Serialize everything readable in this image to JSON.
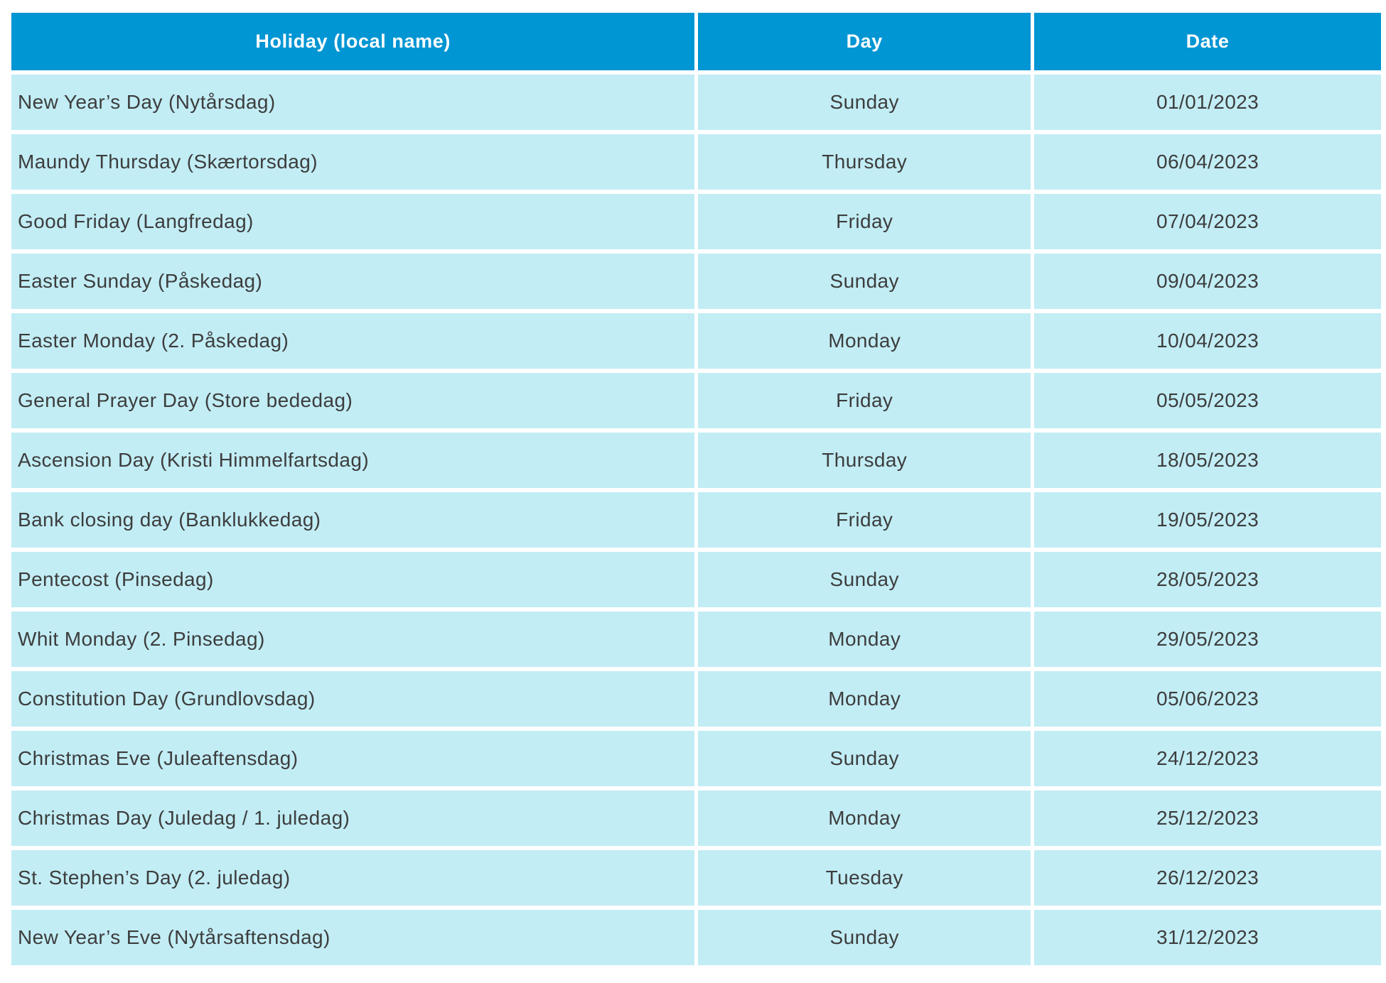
{
  "colors": {
    "header_bg": "#0095d3",
    "header_text": "#ffffff",
    "row_bg": "#c2edf5",
    "row_text": "#3d3d3d",
    "divider": "#ffffff"
  },
  "table": {
    "columns": [
      {
        "label": "Holiday (local name)",
        "align": "left"
      },
      {
        "label": "Day",
        "align": "center"
      },
      {
        "label": "Date",
        "align": "center"
      }
    ],
    "rows": [
      {
        "holiday": "New Year’s Day (Nytårsdag)",
        "day": "Sunday",
        "date": "01/01/2023"
      },
      {
        "holiday": "Maundy Thursday (Skærtorsdag)",
        "day": "Thursday",
        "date": "06/04/2023"
      },
      {
        "holiday": "Good Friday (Langfredag)",
        "day": "Friday",
        "date": "07/04/2023"
      },
      {
        "holiday": "Easter Sunday (Påskedag)",
        "day": "Sunday",
        "date": "09/04/2023"
      },
      {
        "holiday": "Easter Monday (2. Påskedag)",
        "day": "Monday",
        "date": "10/04/2023"
      },
      {
        "holiday": "General Prayer Day (Store bededag)",
        "day": "Friday",
        "date": "05/05/2023"
      },
      {
        "holiday": "Ascension Day (Kristi Himmelfartsdag)",
        "day": "Thursday",
        "date": "18/05/2023"
      },
      {
        "holiday": "Bank closing day (Banklukkedag)",
        "day": "Friday",
        "date": "19/05/2023"
      },
      {
        "holiday": "Pentecost (Pinsedag)",
        "day": "Sunday",
        "date": "28/05/2023"
      },
      {
        "holiday": "Whit Monday (2. Pinsedag)",
        "day": "Monday",
        "date": "29/05/2023"
      },
      {
        "holiday": "Constitution Day (Grundlovsdag)",
        "day": "Monday",
        "date": "05/06/2023"
      },
      {
        "holiday": "Christmas Eve (Juleaftensdag)",
        "day": "Sunday",
        "date": "24/12/2023"
      },
      {
        "holiday": "Christmas Day (Juledag / 1. juledag)",
        "day": "Monday",
        "date": "25/12/2023"
      },
      {
        "holiday": "St. Stephen’s Day (2. juledag)",
        "day": "Tuesday",
        "date": "26/12/2023"
      },
      {
        "holiday": "New Year’s Eve (Nytårsaftensdag)",
        "day": "Sunday",
        "date": "31/12/2023"
      }
    ]
  }
}
